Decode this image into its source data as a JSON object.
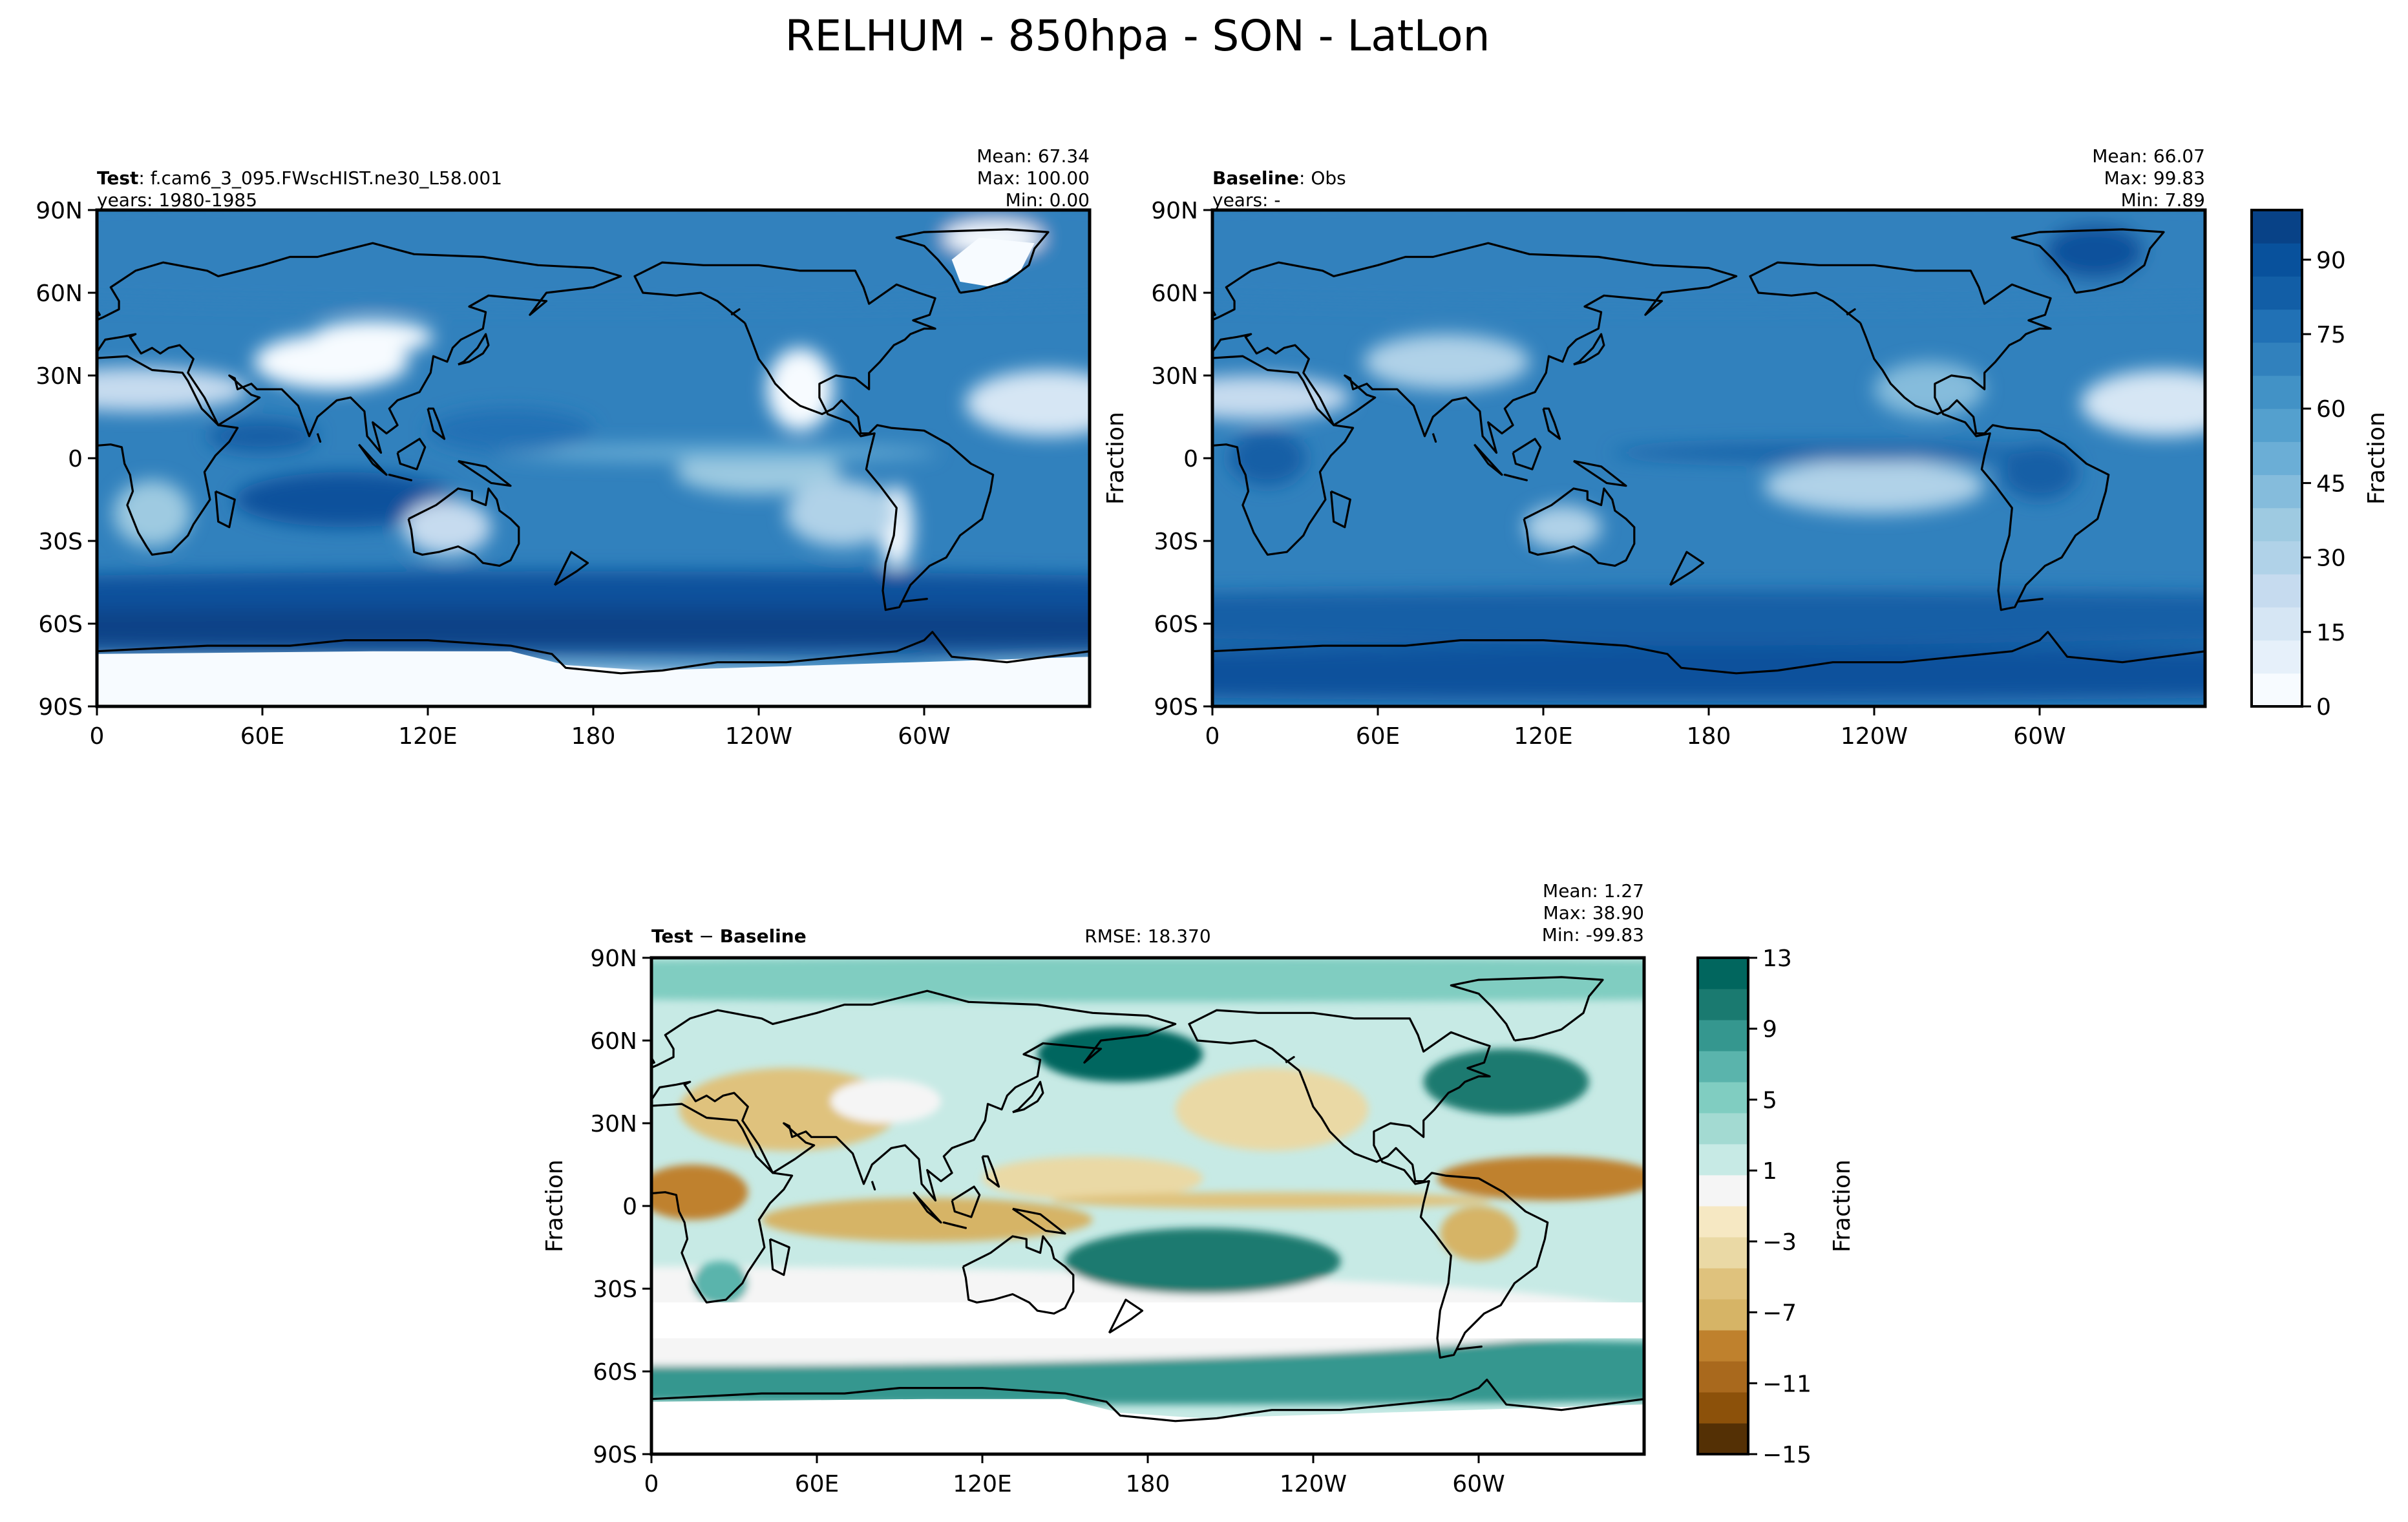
{
  "figure": {
    "title": "RELHUM - 850hpa - SON - LatLon"
  },
  "colors": {
    "blues": [
      "#f7fbff",
      "#e6f0fa",
      "#d6e6f4",
      "#c6dbef",
      "#b0d2e8",
      "#9ecae1",
      "#85bcdc",
      "#6baed6",
      "#54a0ce",
      "#4292c6",
      "#3181bd",
      "#2171b5",
      "#125ea6",
      "#08519c",
      "#084287"
    ],
    "brbg": [
      "#543005",
      "#8c510a",
      "#a9691d",
      "#bf812d",
      "#d6b466",
      "#dfc27d",
      "#ead9a5",
      "#f6e8c3",
      "#f5f5f5",
      "#c7eae5",
      "#a3dad2",
      "#80cdc1",
      "#5ab4ac",
      "#35978f",
      "#1a7a70",
      "#01665e",
      "#00473d"
    ],
    "land": "#000000",
    "frame": "#000000"
  },
  "panels": {
    "test": {
      "label_bold": "Test",
      "label_rest": "f.cam6_3_095.FWscHIST.ne30_L58.001",
      "years": "years: 1980-1985",
      "mean": "Mean: 67.34",
      "max": "Max: 100.00",
      "min": "Min:  0.00"
    },
    "baseline": {
      "label_bold": "Baseline",
      "label_rest": "Obs",
      "years": "years: -",
      "mean": "Mean: 66.07",
      "max": "Max: 99.83",
      "min": "Min:  7.89",
      "ylabel": "Fraction"
    },
    "diff": {
      "label_bold": "Test",
      "label_mid": " − ",
      "label_bold2": "Baseline",
      "rmse": "RMSE: 18.370",
      "mean": "Mean:  1.27",
      "max": "Max: 38.90",
      "min": "Min: -99.83",
      "ylabel": "Fraction"
    }
  },
  "colorbars": {
    "main": {
      "label": "Fraction",
      "ticks": [
        "0",
        "15",
        "30",
        "45",
        "60",
        "75",
        "90"
      ]
    },
    "diff": {
      "label": "Fraction",
      "ticks": [
        "−15",
        "−11",
        "−7",
        "−3",
        "1",
        "5",
        "9",
        "13"
      ]
    }
  },
  "chart_data": [
    {
      "type": "heatmap",
      "title": "Test: f.cam6_3_095.FWscHIST.ne30_L58.001",
      "xlabel": "",
      "ylabel": "",
      "xticks": [
        "0",
        "60E",
        "120E",
        "180",
        "120W",
        "60W"
      ],
      "yticks": [
        "90N",
        "60N",
        "30N",
        "0",
        "30S",
        "60S",
        "90S"
      ],
      "xlim": [
        0,
        360
      ],
      "ylim": [
        -90,
        90
      ],
      "value_range": [
        0,
        100
      ],
      "stats": {
        "mean": 67.34,
        "max": 100.0,
        "min": 0.0
      }
    },
    {
      "type": "heatmap",
      "title": "Baseline: Obs",
      "xlabel": "",
      "ylabel": "Fraction",
      "xticks": [
        "0",
        "60E",
        "120E",
        "180",
        "120W",
        "60W"
      ],
      "yticks": [
        "90N",
        "60N",
        "30N",
        "0",
        "30S",
        "60S",
        "90S"
      ],
      "xlim": [
        0,
        360
      ],
      "ylim": [
        -90,
        90
      ],
      "value_range": [
        0,
        100
      ],
      "stats": {
        "mean": 66.07,
        "max": 99.83,
        "min": 7.89
      }
    },
    {
      "type": "heatmap",
      "title": "Test − Baseline",
      "xlabel": "",
      "ylabel": "Fraction",
      "xticks": [
        "0",
        "60E",
        "120E",
        "180",
        "120W",
        "60W"
      ],
      "yticks": [
        "90N",
        "60N",
        "30N",
        "0",
        "30S",
        "60S",
        "90S"
      ],
      "xlim": [
        0,
        360
      ],
      "ylim": [
        -90,
        90
      ],
      "value_range": [
        -15,
        13
      ],
      "stats": {
        "mean": 1.27,
        "max": 38.9,
        "min": -99.83,
        "rmse": 18.37
      }
    }
  ]
}
